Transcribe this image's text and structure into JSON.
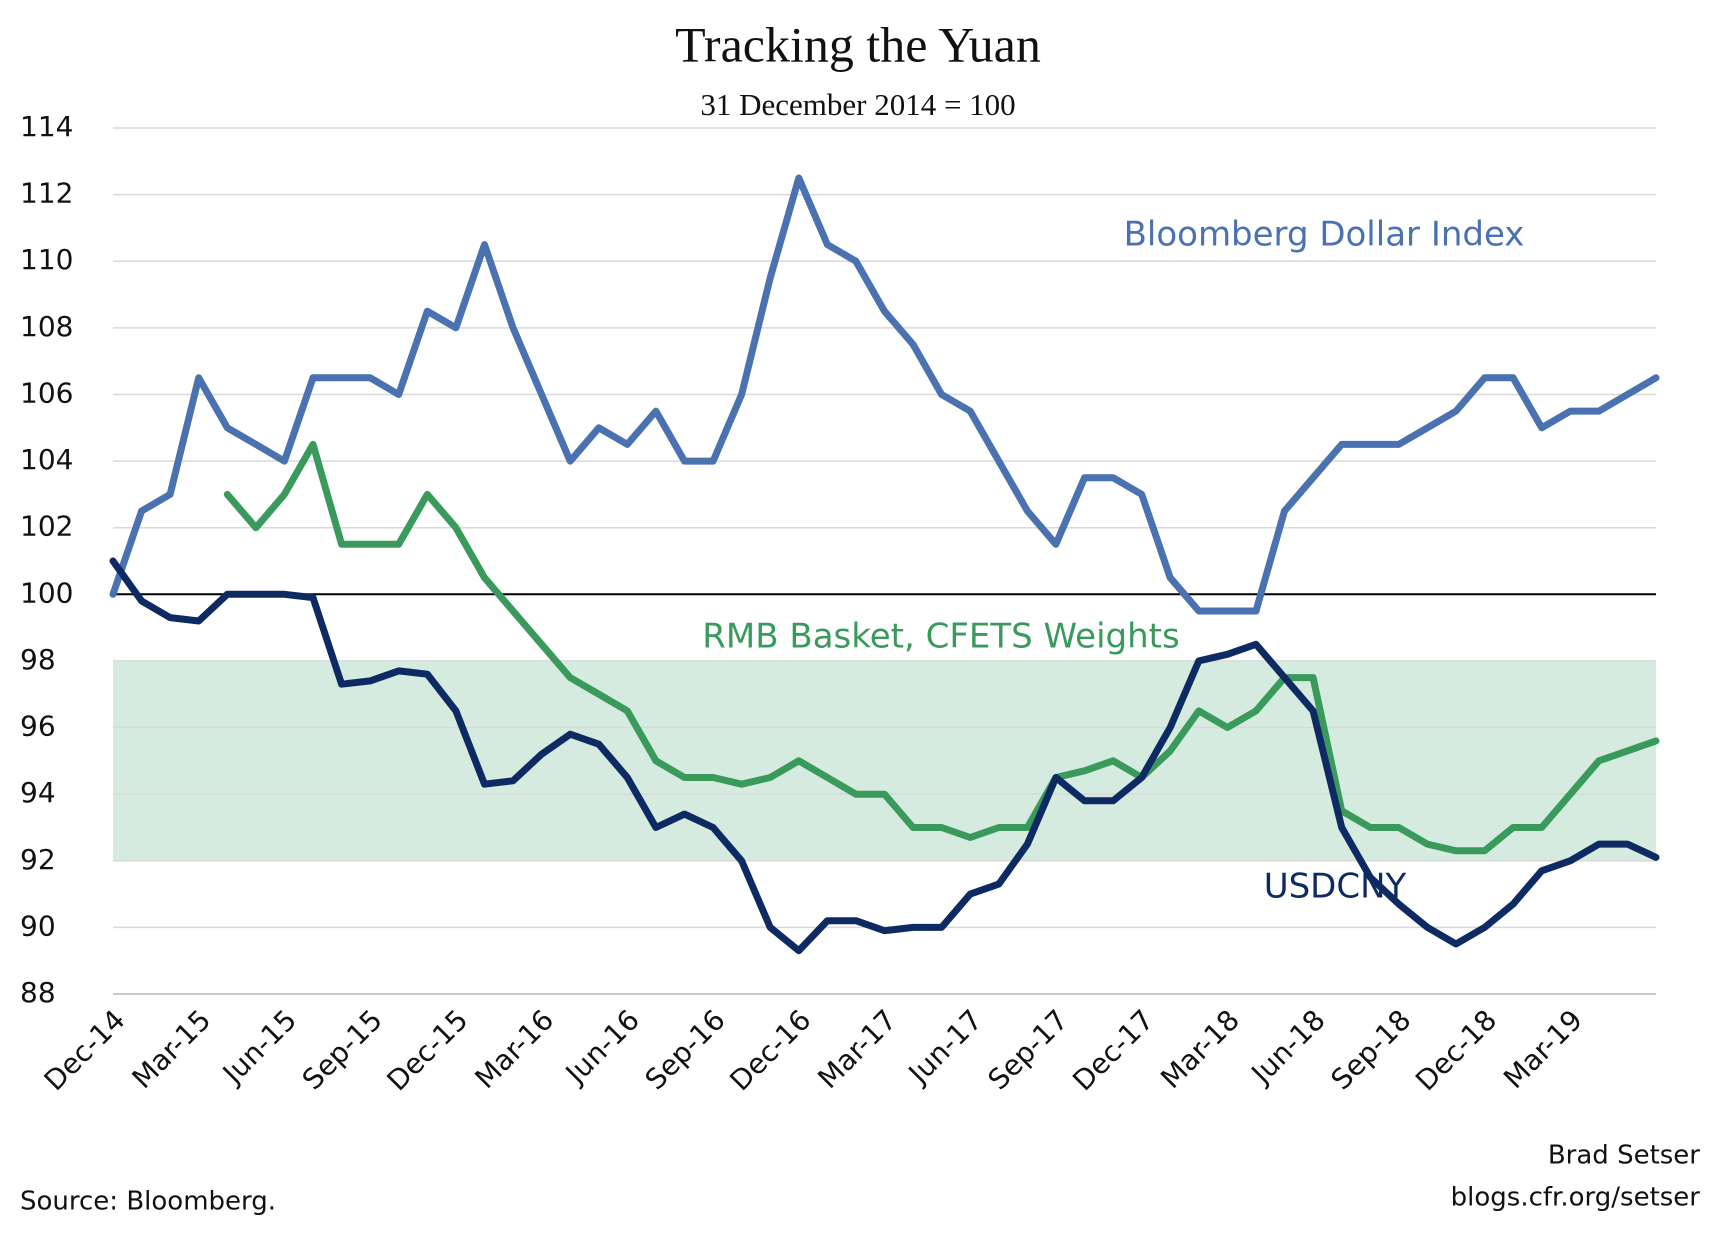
{
  "chart_data": {
    "type": "line",
    "title": "Tracking the Yuan",
    "subtitle": "31 December 2014 = 100",
    "categories": [
      "Dec-14",
      null,
      null,
      "Mar-15",
      null,
      null,
      "Jun-15",
      null,
      null,
      "Sep-15",
      null,
      null,
      "Dec-15",
      null,
      null,
      "Mar-16",
      null,
      null,
      "Jun-16",
      null,
      null,
      "Sep-16",
      null,
      null,
      "Dec-16",
      null,
      null,
      "Mar-17",
      null,
      null,
      "Jun-17",
      null,
      null,
      "Sep-17",
      null,
      null,
      "Dec-17",
      null,
      null,
      "Mar-18",
      null,
      null,
      "Jun-18",
      null,
      null,
      "Sep-18",
      null,
      null,
      "Dec-18",
      null,
      null,
      "Mar-19",
      null,
      null,
      null
    ],
    "series": [
      {
        "name": "Bloomberg Dollar Index",
        "color": "#4a72b0",
        "values": [
          100,
          102.5,
          103,
          106.5,
          105,
          104.5,
          104,
          106.5,
          106.5,
          106.5,
          106,
          108.5,
          108,
          110.5,
          108,
          106,
          104,
          105,
          104.5,
          105.5,
          104,
          104,
          106,
          109.5,
          112.5,
          110.5,
          110,
          108.5,
          107.5,
          106,
          105.5,
          104,
          102.5,
          101.5,
          103.5,
          103.5,
          103,
          100.5,
          99.5,
          99.5,
          99.5,
          102.5,
          103.5,
          104.5,
          104.5,
          104.5,
          105,
          105.5,
          106.5,
          106.5,
          105,
          105.5,
          105.5,
          106,
          106.5
        ]
      },
      {
        "name": "RMB Basket, CFETS Weights",
        "color": "#3a9a5c",
        "values": [
          null,
          null,
          null,
          null,
          103,
          102,
          103,
          104.5,
          101.5,
          101.5,
          101.5,
          103,
          102,
          100.5,
          99.5,
          98.5,
          97.5,
          97,
          96.5,
          95,
          94.5,
          94.5,
          94.3,
          94.5,
          95,
          94.5,
          94,
          94,
          93,
          93,
          92.7,
          93,
          93,
          94.5,
          94.7,
          95,
          94.5,
          95.3,
          96.5,
          96,
          96.5,
          97.5,
          97.5,
          93.5,
          93,
          93,
          92.5,
          92.3,
          92.3,
          93,
          93,
          94,
          95,
          95.3,
          95.6
        ]
      },
      {
        "name": "USDCNY",
        "color": "#0e2a63",
        "values": [
          101,
          99.8,
          99.3,
          99.2,
          100,
          100,
          100,
          99.9,
          97.3,
          97.4,
          97.7,
          97.6,
          96.5,
          94.3,
          94.4,
          95.2,
          95.8,
          95.5,
          94.5,
          93,
          93.4,
          93,
          92,
          90,
          89.3,
          90.2,
          90.2,
          89.9,
          90,
          90,
          91,
          91.3,
          92.5,
          94.5,
          93.8,
          93.8,
          94.5,
          96,
          98,
          98.2,
          98.5,
          97.5,
          96.5,
          93,
          91.5,
          90.7,
          90,
          89.5,
          90,
          90.7,
          91.7,
          92,
          92.5,
          92.5,
          92.1
        ]
      }
    ],
    "ylim": [
      88,
      114
    ],
    "yticks": [
      88,
      90,
      92,
      94,
      96,
      98,
      100,
      102,
      104,
      106,
      108,
      110,
      112,
      114
    ],
    "grid": true,
    "band": [
      92,
      98
    ],
    "band_color": "#d5ebdf",
    "reference_line": 100,
    "source": "Source: Bloomberg.",
    "credit": [
      "Brad Setser",
      "blogs.cfr.org/setser"
    ]
  }
}
